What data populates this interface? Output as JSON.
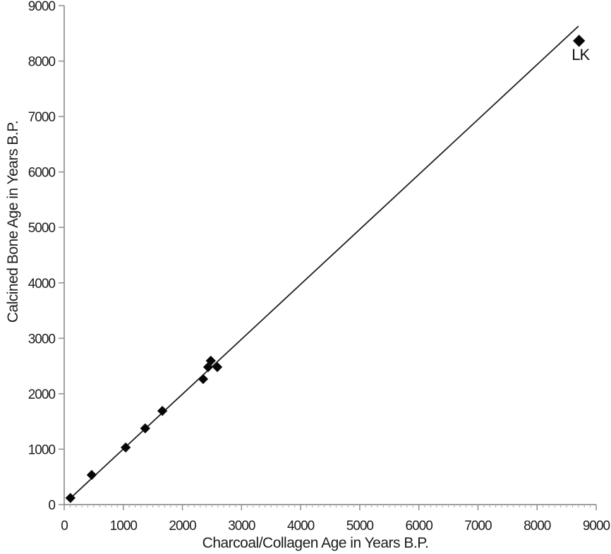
{
  "chart_data": {
    "type": "scatter",
    "title": "",
    "xlabel": "Charcoal/Collagen Age in Years B.P.",
    "ylabel": "Calcined Bone Age in Years B.P.",
    "xlim": [
      0,
      9000
    ],
    "ylim": [
      0,
      9000
    ],
    "grid": false,
    "legend": null,
    "marker_shape": "diamond",
    "marker_color": "#060606",
    "axis_color": "#8f8f8f",
    "text_color": "#1c1c1c",
    "trend_line_color": "#1f1f1f",
    "x_ticks": [
      0,
      1000,
      2000,
      3000,
      4000,
      5000,
      6000,
      7000,
      8000,
      9000
    ],
    "x_tick_labels": [
      "0",
      "1000",
      "2000",
      "3000",
      "4000",
      "5000",
      "6000",
      "7000",
      "8000",
      "9000"
    ],
    "y_ticks": [
      0,
      1000,
      2000,
      3000,
      4000,
      5000,
      6000,
      7000,
      8000,
      9000
    ],
    "y_tick_labels": [
      "0",
      "1000",
      "2000",
      "3000",
      "4000",
      "5000",
      "6000",
      "7000",
      "8000",
      "9000"
    ],
    "x_minor_tick_interval": 100,
    "trend_line": {
      "x1": 120,
      "y1": 130,
      "x2": 8700,
      "y2": 8630
    },
    "points": [
      {
        "x": 105,
        "y": 120
      },
      {
        "x": 465,
        "y": 535
      },
      {
        "x": 1040,
        "y": 1030
      },
      {
        "x": 1370,
        "y": 1375
      },
      {
        "x": 1660,
        "y": 1690
      },
      {
        "x": 2350,
        "y": 2265
      },
      {
        "x": 2435,
        "y": 2480
      },
      {
        "x": 2480,
        "y": 2595
      },
      {
        "x": 2590,
        "y": 2480
      },
      {
        "x": 8710,
        "y": 8365,
        "label": "LK"
      }
    ]
  }
}
